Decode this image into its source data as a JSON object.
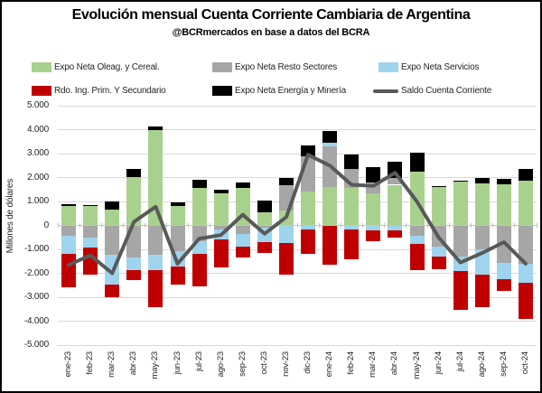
{
  "header": {
    "title": "Evolución mensual Cuenta Corriente Cambiaria de Argentina",
    "subtitle": "@BCRmercados en base a datos del BCRA"
  },
  "colors": {
    "green": "#a9d18e",
    "gray": "#a6a6a6",
    "blue": "#9fd4ee",
    "red": "#c00000",
    "black": "#000000",
    "line": "#595959",
    "grid": "#d9d9d9",
    "text": "#262626",
    "border": "#000000"
  },
  "legend": [
    {
      "label": "Expo Neta Oleag. y Cereal.",
      "color_key": "green",
      "swatch": "rect"
    },
    {
      "label": "Expo Neta Resto Sectores",
      "color_key": "gray",
      "swatch": "rect"
    },
    {
      "label": "Expo Neta Servicios",
      "color_key": "blue",
      "swatch": "rect"
    },
    {
      "label": "Rdo. Ing. Prim. Y Secundario",
      "color_key": "red",
      "swatch": "rect"
    },
    {
      "label": "Expo Neta Energía y Minería",
      "color_key": "black",
      "swatch": "rect"
    },
    {
      "label": "Saldo Cuenta Corriente",
      "color_key": "line",
      "swatch": "line"
    }
  ],
  "chart_data": {
    "type": "stacked-bar-line",
    "title": "Evolución mensual Cuenta Corriente Cambiaria de Argentina",
    "subtitle": "@BCRmercados en base a datos del BCRA",
    "ylabel": "Millones de dólares",
    "xlabel": "",
    "ylim": [
      -5000,
      5000
    ],
    "grid": true,
    "legend_position": "top",
    "ytick_labels": [
      "5.000",
      "4.000",
      "3.000",
      "2.000",
      "1.000",
      "0",
      "-1.000",
      "-2.000",
      "-3.000",
      "-4.000",
      "-5.000"
    ],
    "categories": [
      "ene-23",
      "feb-23",
      "mar-23",
      "abr-23",
      "may-23",
      "jun-23",
      "jul-23",
      "ago-23",
      "sep-23",
      "oct-23",
      "nov-23",
      "dic-23",
      "ene-24",
      "feb-24",
      "mar-24",
      "abr-24",
      "may-24",
      "jun-24",
      "jul-24",
      "ago-24",
      "sep-24",
      "oct-24"
    ],
    "series": [
      {
        "name": "Expo Neta Oleag. y Cereal.",
        "color_key": "green",
        "values": [
          800,
          820,
          650,
          2030,
          4000,
          820,
          1580,
          1350,
          1550,
          550,
          620,
          1400,
          1600,
          1550,
          1350,
          1700,
          2250,
          1600,
          1820,
          1770,
          1730,
          1860
        ]
      },
      {
        "name": "Expo Neta Resto Sectores",
        "color_key": "gray",
        "values": [
          -450,
          -520,
          -1210,
          -1340,
          -1210,
          -1090,
          -650,
          -150,
          -350,
          -100,
          1070,
          1500,
          1700,
          800,
          450,
          280,
          -450,
          -900,
          -1300,
          -1000,
          -1550,
          -1600
        ]
      },
      {
        "name": "Expo Neta Servicios",
        "color_key": "blue",
        "values": [
          -750,
          -420,
          -1270,
          -510,
          -640,
          -610,
          -540,
          -450,
          -550,
          -600,
          -720,
          -150,
          150,
          -150,
          -200,
          -200,
          -330,
          -400,
          -600,
          -1050,
          -700,
          -800
        ]
      },
      {
        "name": "Rdo. Ing. Prim. Y Secundario",
        "color_key": "red",
        "values": [
          -1400,
          -1100,
          -530,
          -440,
          -1580,
          -760,
          -1350,
          -1150,
          -450,
          -450,
          -1320,
          -1050,
          -1650,
          -1250,
          -450,
          -300,
          -1070,
          -550,
          -1650,
          -1350,
          -500,
          -1500
        ]
      },
      {
        "name": "Expo Neta Energía y Minería",
        "color_key": "black",
        "values": [
          70,
          40,
          350,
          340,
          150,
          140,
          340,
          150,
          260,
          500,
          280,
          440,
          500,
          600,
          620,
          700,
          800,
          40,
          40,
          210,
          210,
          500
        ]
      }
    ],
    "line_series": {
      "name": "Saldo Cuenta Corriente",
      "values": [
        -1650,
        -1250,
        -2000,
        150,
        780,
        -1600,
        -550,
        -400,
        450,
        -350,
        350,
        2950,
        2500,
        1700,
        1650,
        2200,
        1000,
        -500,
        -1550,
        -1150,
        -700,
        -1600
      ]
    }
  }
}
